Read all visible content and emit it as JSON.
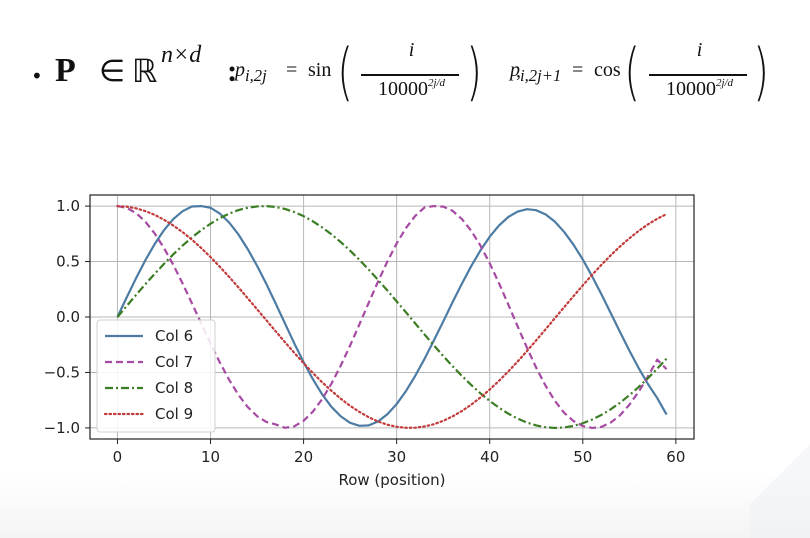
{
  "formula": {
    "bullet": "•",
    "matrix": "P",
    "in": "∈",
    "realset": "ℝ",
    "dimensions": "n×d",
    "colon": ":",
    "even": {
      "lhs": "p",
      "lhs_sub": "i,2j",
      "equals": "=",
      "fn": "sin",
      "numerator": "i",
      "denominator_base": "10000",
      "denominator_exp": "2j/d"
    },
    "comma": ",",
    "odd": {
      "lhs": "p",
      "lhs_sub": "i,2j+1",
      "equals": "=",
      "fn": "cos",
      "numerator": "i",
      "denominator_base": "10000",
      "denominator_exp": "2j/d"
    }
  },
  "colors": {
    "col6": "#4c7ba3",
    "col7": "#a64aa3",
    "col8": "#3b7d23",
    "col9": "#c23a3a",
    "grid": "#b8b8b8",
    "axis": "#222222"
  },
  "chart_data": {
    "type": "line",
    "title": "",
    "xlabel": "Row (position)",
    "ylabel": "",
    "xlim": [
      -2.95,
      61.95
    ],
    "ylim": [
      -1.1,
      1.1
    ],
    "xticks": [
      0,
      10,
      20,
      30,
      40,
      50,
      60
    ],
    "yticks": [
      -1.0,
      -0.5,
      0.0,
      0.5,
      1.0
    ],
    "xticklabels": [
      "0",
      "10",
      "20",
      "30",
      "40",
      "50",
      "60"
    ],
    "yticklabels": [
      "−1.0",
      "−0.5",
      "0.0",
      "0.5",
      "1.0"
    ],
    "grid": true,
    "legend_placement": "lower-left",
    "x": [
      0,
      1,
      2,
      3,
      4,
      5,
      6,
      7,
      8,
      9,
      10,
      11,
      12,
      13,
      14,
      15,
      16,
      17,
      18,
      19,
      20,
      21,
      22,
      23,
      24,
      25,
      26,
      27,
      28,
      29,
      30,
      31,
      32,
      33,
      34,
      35,
      36,
      37,
      38,
      39,
      40,
      41,
      42,
      43,
      44,
      45,
      46,
      47,
      48,
      49,
      50,
      51,
      52,
      53,
      54,
      55,
      56,
      57,
      58,
      59
    ],
    "series": [
      {
        "name": "Col 6",
        "style": "solid",
        "color": "#4c7ba3",
        "values": [
          0.0,
          0.178,
          0.35,
          0.512,
          0.658,
          0.783,
          0.883,
          0.954,
          0.996,
          1.0,
          0.985,
          0.933,
          0.852,
          0.744,
          0.612,
          0.462,
          0.297,
          0.122,
          -0.058,
          -0.237,
          -0.407,
          -0.561,
          -0.698,
          -0.811,
          -0.896,
          -0.954,
          -0.981,
          -0.977,
          -0.942,
          -0.877,
          -0.785,
          -0.668,
          -0.53,
          -0.377,
          -0.211,
          -0.041,
          0.132,
          0.299,
          0.457,
          0.6,
          0.724,
          0.826,
          0.902,
          0.951,
          0.972,
          0.963,
          0.925,
          0.86,
          0.767,
          0.652,
          0.519,
          0.367,
          0.205,
          0.036,
          -0.135,
          -0.302,
          -0.46,
          -0.604,
          -0.731,
          -0.88
        ]
      },
      {
        "name": "Col 7",
        "style": "dashed",
        "color": "#a64aa3",
        "values": [
          1.0,
          0.984,
          0.937,
          0.859,
          0.753,
          0.622,
          0.47,
          0.302,
          0.124,
          -0.058,
          -0.238,
          -0.41,
          -0.566,
          -0.702,
          -0.812,
          -0.894,
          -0.946,
          -0.969,
          -0.999,
          -0.986,
          -0.936,
          -0.853,
          -0.74,
          -0.6,
          -0.437,
          -0.257,
          -0.066,
          0.128,
          0.319,
          0.5,
          0.663,
          0.802,
          0.912,
          0.988,
          1.0,
          0.995,
          0.958,
          0.884,
          0.779,
          0.644,
          0.484,
          0.304,
          0.112,
          -0.085,
          -0.277,
          -0.458,
          -0.62,
          -0.756,
          -0.864,
          -0.938,
          -0.983,
          -1.0,
          -0.991,
          -0.952,
          -0.886,
          -0.792,
          -0.674,
          -0.537,
          -0.385,
          -0.47
        ]
      },
      {
        "name": "Col 8",
        "style": "dashdot",
        "color": "#3b7d23",
        "values": [
          0.0,
          0.1,
          0.199,
          0.296,
          0.389,
          0.479,
          0.565,
          0.644,
          0.717,
          0.783,
          0.841,
          0.891,
          0.932,
          0.964,
          0.985,
          0.997,
          1.0,
          0.992,
          0.974,
          0.946,
          0.909,
          0.863,
          0.808,
          0.745,
          0.675,
          0.598,
          0.516,
          0.427,
          0.335,
          0.239,
          0.141,
          0.042,
          -0.058,
          -0.158,
          -0.256,
          -0.351,
          -0.443,
          -0.53,
          -0.612,
          -0.688,
          -0.757,
          -0.818,
          -0.872,
          -0.916,
          -0.952,
          -0.978,
          -0.994,
          -1.0,
          -0.996,
          -0.982,
          -0.958,
          -0.925,
          -0.883,
          -0.832,
          -0.773,
          -0.706,
          -0.632,
          -0.552,
          -0.466,
          -0.376
        ]
      },
      {
        "name": "Col 9",
        "style": "dotted",
        "color": "#c23a3a",
        "values": [
          1.0,
          0.995,
          0.98,
          0.955,
          0.921,
          0.877,
          0.825,
          0.765,
          0.697,
          0.622,
          0.54,
          0.453,
          0.362,
          0.267,
          0.169,
          0.07,
          -0.029,
          -0.129,
          -0.227,
          -0.323,
          -0.416,
          -0.505,
          -0.589,
          -0.666,
          -0.737,
          -0.801,
          -0.856,
          -0.904,
          -0.942,
          -0.971,
          -0.99,
          -0.999,
          -0.998,
          -0.987,
          -0.967,
          -0.936,
          -0.897,
          -0.848,
          -0.791,
          -0.726,
          -0.654,
          -0.575,
          -0.491,
          -0.401,
          -0.307,
          -0.21,
          -0.111,
          -0.011,
          0.089,
          0.188,
          0.285,
          0.38,
          0.47,
          0.556,
          0.636,
          0.709,
          0.776,
          0.835,
          0.886,
          0.928
        ]
      }
    ]
  }
}
